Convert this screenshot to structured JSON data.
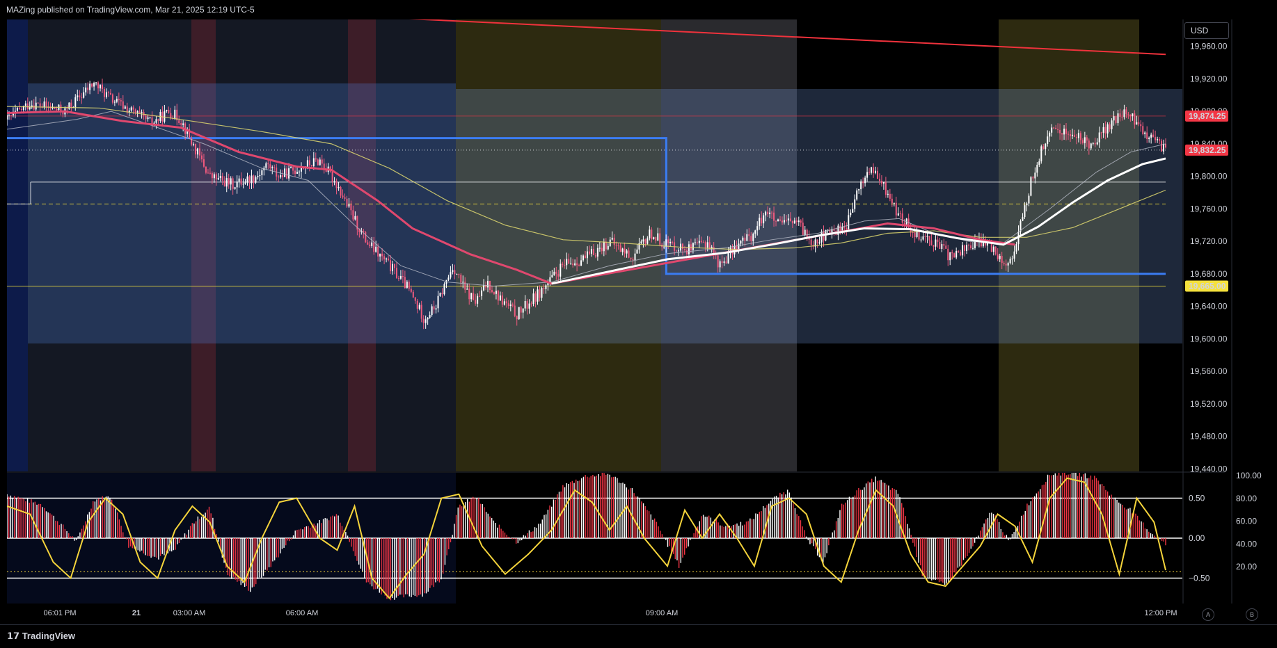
{
  "header": {
    "text": "MAZing published on TradingView.com, Mar 21, 2025 12:19 UTC-5"
  },
  "currency_button": "USD",
  "footer": {
    "logo_text": "TradingView",
    "btn_a": "A",
    "btn_b": "B"
  },
  "colors": {
    "up_candle": "#ffffff",
    "down_candle": "#f05a7e",
    "ma_fast": "#ffffff",
    "ma_red": "#e0486e",
    "ma_yellow": "#e0d970",
    "trend_line": "#f0323c",
    "range_box": "#3b7cf2",
    "price_tag_red": "#f23645",
    "price_tag_yellow": "#f5e13b",
    "osc_line": "#f5d43b"
  },
  "chart_data": [
    {
      "type": "candlestick",
      "price_axis": {
        "ticks": [
          "19,960.00",
          "19,920.00",
          "19,880.00",
          "19,840.00",
          "19,800.00",
          "19,760.00",
          "19,720.00",
          "19,680.00",
          "19,640.00",
          "19,600.00",
          "19,560.00",
          "19,520.00",
          "19,480.00",
          "19,440.00"
        ],
        "ylim": [
          19437,
          19993
        ]
      },
      "time_axis": {
        "ticks": [
          "06:01 PM",
          "21",
          "03:00 AM",
          "06:00 AM",
          "09:00 AM",
          "12:00 PM"
        ]
      },
      "price_tags": [
        {
          "label": "19,874.25",
          "value": 19874.25,
          "color": "#f23645"
        },
        {
          "label": "19,832.25",
          "value": 19832.25,
          "color": "#f23645"
        },
        {
          "label": "19,665.00",
          "value": 19665.0,
          "color": "#f5e13b"
        }
      ],
      "horizontal_levels": [
        {
          "value": 19874.25,
          "style": "thin red"
        },
        {
          "value": 19832.25,
          "style": "dotted white"
        },
        {
          "value": 19793,
          "style": "white"
        },
        {
          "value": 19766,
          "style": "dashed yellow"
        },
        {
          "value": 19665,
          "style": "thin yellow"
        }
      ],
      "path": [
        [
          0.0,
          19870
        ],
        [
          0.02,
          19890
        ],
        [
          0.05,
          19880
        ],
        [
          0.075,
          19915
        ],
        [
          0.09,
          19895
        ],
        [
          0.11,
          19878
        ],
        [
          0.125,
          19865
        ],
        [
          0.14,
          19880
        ],
        [
          0.15,
          19870
        ],
        [
          0.16,
          19840
        ],
        [
          0.175,
          19800
        ],
        [
          0.195,
          19790
        ],
        [
          0.215,
          19800
        ],
        [
          0.225,
          19815
        ],
        [
          0.235,
          19800
        ],
        [
          0.255,
          19812
        ],
        [
          0.27,
          19820
        ],
        [
          0.285,
          19790
        ],
        [
          0.295,
          19760
        ],
        [
          0.31,
          19720
        ],
        [
          0.33,
          19690
        ],
        [
          0.345,
          19665
        ],
        [
          0.36,
          19625
        ],
        [
          0.37,
          19640
        ],
        [
          0.385,
          19690
        ],
        [
          0.395,
          19660
        ],
        [
          0.405,
          19645
        ],
        [
          0.415,
          19670
        ],
        [
          0.425,
          19650
        ],
        [
          0.44,
          19630
        ],
        [
          0.455,
          19650
        ],
        [
          0.465,
          19665
        ],
        [
          0.48,
          19690
        ],
        [
          0.5,
          19700
        ],
        [
          0.52,
          19720
        ],
        [
          0.54,
          19700
        ],
        [
          0.555,
          19730
        ],
        [
          0.565,
          19720
        ],
        [
          0.575,
          19715
        ],
        [
          0.59,
          19710
        ],
        [
          0.605,
          19720
        ],
        [
          0.615,
          19690
        ],
        [
          0.63,
          19715
        ],
        [
          0.645,
          19730
        ],
        [
          0.655,
          19760
        ],
        [
          0.665,
          19740
        ],
        [
          0.68,
          19745
        ],
        [
          0.695,
          19720
        ],
        [
          0.71,
          19730
        ],
        [
          0.725,
          19740
        ],
        [
          0.735,
          19785
        ],
        [
          0.745,
          19810
        ],
        [
          0.76,
          19780
        ],
        [
          0.77,
          19750
        ],
        [
          0.785,
          19730
        ],
        [
          0.8,
          19720
        ],
        [
          0.815,
          19700
        ],
        [
          0.83,
          19715
        ],
        [
          0.845,
          19720
        ],
        [
          0.855,
          19705
        ],
        [
          0.865,
          19690
        ],
        [
          0.875,
          19740
        ],
        [
          0.885,
          19800
        ],
        [
          0.895,
          19840
        ],
        [
          0.905,
          19860
        ],
        [
          0.92,
          19850
        ],
        [
          0.935,
          19840
        ],
        [
          0.95,
          19860
        ],
        [
          0.965,
          19880
        ],
        [
          0.975,
          19865
        ],
        [
          0.985,
          19850
        ],
        [
          0.995,
          19838
        ],
        [
          1.0,
          19832
        ]
      ],
      "moving_averages": {
        "fast_white": [
          [
            0.0,
            19858
          ],
          [
            0.06,
            19870
          ],
          [
            0.09,
            19880
          ],
          [
            0.12,
            19865
          ],
          [
            0.17,
            19840
          ],
          [
            0.22,
            19810
          ],
          [
            0.26,
            19795
          ],
          [
            0.3,
            19740
          ],
          [
            0.34,
            19690
          ],
          [
            0.38,
            19670
          ],
          [
            0.42,
            19665
          ],
          [
            0.47,
            19670
          ],
          [
            0.52,
            19690
          ],
          [
            0.57,
            19705
          ],
          [
            0.62,
            19712
          ],
          [
            0.66,
            19722
          ],
          [
            0.7,
            19730
          ],
          [
            0.74,
            19745
          ],
          [
            0.77,
            19748
          ],
          [
            0.8,
            19730
          ],
          [
            0.83,
            19720
          ],
          [
            0.86,
            19718
          ],
          [
            0.9,
            19760
          ],
          [
            0.94,
            19805
          ],
          [
            0.97,
            19830
          ],
          [
            1.0,
            19840
          ]
        ],
        "bold_white": [
          [
            0.47,
            19668
          ],
          [
            0.52,
            19683
          ],
          [
            0.57,
            19698
          ],
          [
            0.62,
            19706
          ],
          [
            0.66,
            19716
          ],
          [
            0.7,
            19727
          ],
          [
            0.74,
            19736
          ],
          [
            0.78,
            19735
          ],
          [
            0.82,
            19724
          ],
          [
            0.86,
            19716
          ],
          [
            0.89,
            19738
          ],
          [
            0.92,
            19768
          ],
          [
            0.95,
            19795
          ],
          [
            0.98,
            19815
          ],
          [
            1.0,
            19822
          ]
        ],
        "red": [
          [
            0.0,
            19878
          ],
          [
            0.05,
            19880
          ],
          [
            0.1,
            19868
          ],
          [
            0.15,
            19860
          ],
          [
            0.2,
            19830
          ],
          [
            0.25,
            19812
          ],
          [
            0.28,
            19808
          ],
          [
            0.32,
            19770
          ],
          [
            0.35,
            19736
          ],
          [
            0.4,
            19704
          ],
          [
            0.44,
            19685
          ],
          [
            0.47,
            19668
          ],
          [
            0.76,
            19742
          ],
          [
            0.8,
            19736
          ],
          [
            0.84,
            19722
          ],
          [
            0.87,
            19716
          ]
        ],
        "yellow": [
          [
            0.0,
            19886
          ],
          [
            0.08,
            19884
          ],
          [
            0.15,
            19870
          ],
          [
            0.22,
            19855
          ],
          [
            0.28,
            19840
          ],
          [
            0.33,
            19810
          ],
          [
            0.38,
            19770
          ],
          [
            0.43,
            19740
          ],
          [
            0.48,
            19722
          ],
          [
            0.53,
            19718
          ],
          [
            0.58,
            19713
          ],
          [
            0.63,
            19710
          ],
          [
            0.68,
            19712
          ],
          [
            0.72,
            19718
          ],
          [
            0.76,
            19730
          ],
          [
            0.8,
            19733
          ],
          [
            0.84,
            19725
          ],
          [
            0.88,
            19725
          ],
          [
            0.92,
            19737
          ],
          [
            0.96,
            19760
          ],
          [
            1.0,
            19783
          ]
        ]
      },
      "trend_line": {
        "from": [
          0.33,
          19995
        ],
        "to": [
          1.0,
          19950
        ]
      },
      "range_boxes": [
        {
          "x": [
            0.0,
            0.569
          ],
          "level": 19847
        },
        {
          "x": [
            0.569,
            1.0
          ],
          "level": 19680
        }
      ]
    },
    {
      "type": "oscillator",
      "left_axis": {
        "ticks": [
          "0.50",
          "0.00",
          "−0.50"
        ]
      },
      "right_axis": {
        "ticks": [
          "100.00",
          "80.00",
          "60.00",
          "40.00",
          "20.00"
        ]
      },
      "levels": [
        0.5,
        0.0,
        -0.5
      ],
      "ylim": [
        -0.8,
        0.8
      ],
      "histogram_path": [
        [
          0.0,
          0.55
        ],
        [
          0.03,
          0.42
        ],
        [
          0.05,
          0.12
        ],
        [
          0.06,
          -0.05
        ],
        [
          0.075,
          0.48
        ],
        [
          0.09,
          0.52
        ],
        [
          0.105,
          -0.1
        ],
        [
          0.13,
          -0.25
        ],
        [
          0.145,
          -0.15
        ],
        [
          0.16,
          0.18
        ],
        [
          0.175,
          0.38
        ],
        [
          0.19,
          -0.45
        ],
        [
          0.21,
          -0.65
        ],
        [
          0.23,
          -0.3
        ],
        [
          0.25,
          0.1
        ],
        [
          0.27,
          0.2
        ],
        [
          0.285,
          0.3
        ],
        [
          0.295,
          0.0
        ],
        [
          0.31,
          -0.55
        ],
        [
          0.33,
          -0.75
        ],
        [
          0.36,
          -0.7
        ],
        [
          0.375,
          -0.5
        ],
        [
          0.39,
          0.4
        ],
        [
          0.405,
          0.52
        ],
        [
          0.42,
          0.2
        ],
        [
          0.44,
          -0.05
        ],
        [
          0.46,
          0.18
        ],
        [
          0.48,
          0.65
        ],
        [
          0.5,
          0.78
        ],
        [
          0.52,
          0.8
        ],
        [
          0.54,
          0.6
        ],
        [
          0.56,
          0.2
        ],
        [
          0.58,
          -0.35
        ],
        [
          0.6,
          0.3
        ],
        [
          0.62,
          0.15
        ],
        [
          0.64,
          0.2
        ],
        [
          0.66,
          0.48
        ],
        [
          0.675,
          0.6
        ],
        [
          0.69,
          0.0
        ],
        [
          0.705,
          -0.3
        ],
        [
          0.72,
          0.4
        ],
        [
          0.735,
          0.6
        ],
        [
          0.75,
          0.75
        ],
        [
          0.77,
          0.55
        ],
        [
          0.79,
          -0.45
        ],
        [
          0.81,
          -0.6
        ],
        [
          0.83,
          -0.2
        ],
        [
          0.85,
          0.35
        ],
        [
          0.865,
          -0.05
        ],
        [
          0.88,
          0.4
        ],
        [
          0.9,
          0.8
        ],
        [
          0.92,
          0.82
        ],
        [
          0.94,
          0.75
        ],
        [
          0.955,
          0.5
        ],
        [
          0.97,
          0.35
        ],
        [
          0.985,
          0.1
        ],
        [
          1.0,
          -0.08
        ]
      ],
      "signal_path": [
        [
          0.0,
          0.4
        ],
        [
          0.02,
          0.3
        ],
        [
          0.04,
          -0.3
        ],
        [
          0.055,
          -0.5
        ],
        [
          0.07,
          0.2
        ],
        [
          0.085,
          0.5
        ],
        [
          0.1,
          0.3
        ],
        [
          0.115,
          -0.3
        ],
        [
          0.13,
          -0.5
        ],
        [
          0.145,
          0.1
        ],
        [
          0.16,
          0.4
        ],
        [
          0.175,
          0.2
        ],
        [
          0.19,
          -0.35
        ],
        [
          0.205,
          -0.55
        ],
        [
          0.22,
          0.0
        ],
        [
          0.235,
          0.45
        ],
        [
          0.25,
          0.5
        ],
        [
          0.27,
          0.0
        ],
        [
          0.285,
          -0.15
        ],
        [
          0.3,
          0.4
        ],
        [
          0.315,
          -0.5
        ],
        [
          0.33,
          -0.75
        ],
        [
          0.345,
          -0.45
        ],
        [
          0.36,
          -0.2
        ],
        [
          0.375,
          0.5
        ],
        [
          0.39,
          0.55
        ],
        [
          0.41,
          -0.1
        ],
        [
          0.43,
          -0.45
        ],
        [
          0.45,
          -0.2
        ],
        [
          0.47,
          0.1
        ],
        [
          0.49,
          0.6
        ],
        [
          0.505,
          0.45
        ],
        [
          0.52,
          0.1
        ],
        [
          0.535,
          0.4
        ],
        [
          0.55,
          0.0
        ],
        [
          0.57,
          -0.35
        ],
        [
          0.585,
          0.35
        ],
        [
          0.6,
          0.0
        ],
        [
          0.615,
          0.3
        ],
        [
          0.63,
          0.0
        ],
        [
          0.645,
          -0.35
        ],
        [
          0.66,
          0.4
        ],
        [
          0.675,
          0.5
        ],
        [
          0.69,
          0.3
        ],
        [
          0.705,
          -0.35
        ],
        [
          0.72,
          -0.55
        ],
        [
          0.735,
          0.1
        ],
        [
          0.75,
          0.6
        ],
        [
          0.765,
          0.4
        ],
        [
          0.78,
          -0.2
        ],
        [
          0.795,
          -0.55
        ],
        [
          0.81,
          -0.6
        ],
        [
          0.825,
          -0.35
        ],
        [
          0.84,
          -0.1
        ],
        [
          0.855,
          0.3
        ],
        [
          0.87,
          0.15
        ],
        [
          0.885,
          -0.3
        ],
        [
          0.9,
          0.5
        ],
        [
          0.915,
          0.75
        ],
        [
          0.93,
          0.7
        ],
        [
          0.945,
          0.3
        ],
        [
          0.96,
          -0.45
        ],
        [
          0.975,
          0.5
        ],
        [
          0.99,
          0.2
        ],
        [
          1.0,
          -0.4
        ]
      ]
    }
  ]
}
